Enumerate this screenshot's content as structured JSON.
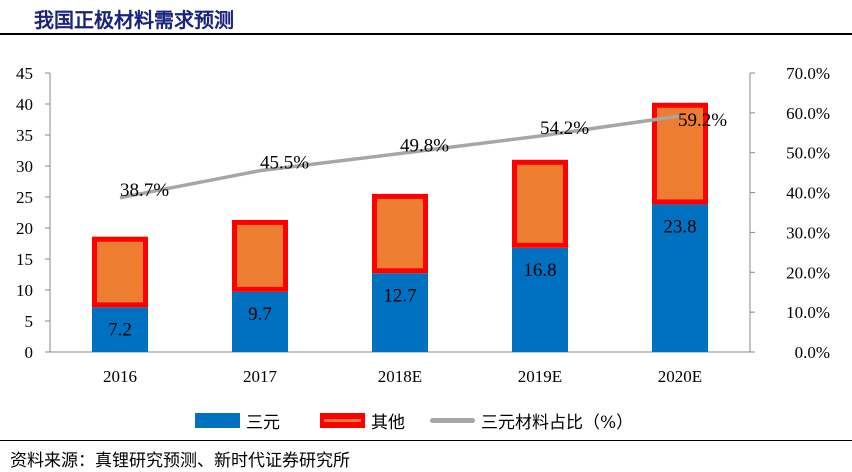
{
  "title": "我国正极材料需求预测",
  "source": "资料来源：真锂研究预测、新时代证券研究所",
  "chart_data": {
    "type": "bar",
    "stacked": true,
    "categories": [
      "2016",
      "2017",
      "2018E",
      "2019E",
      "2020E"
    ],
    "series": [
      {
        "name": "三元",
        "type": "bar",
        "axis": "left",
        "values": [
          7.2,
          9.7,
          12.7,
          16.8,
          23.8
        ],
        "color": "#0070c0",
        "labels": [
          "7.2",
          "9.7",
          "12.7",
          "16.8",
          "23.8"
        ]
      },
      {
        "name": "其他",
        "type": "bar",
        "axis": "left",
        "values": [
          11.4,
          11.6,
          12.8,
          14.2,
          16.4
        ],
        "color": "#ed7d31",
        "border": "#ff0000"
      },
      {
        "name": "三元材料占比（%）",
        "type": "line",
        "axis": "right",
        "values": [
          38.7,
          45.5,
          49.8,
          54.2,
          59.2
        ],
        "color": "#a6a6a6",
        "labels": [
          "38.7%",
          "45.5%",
          "49.8%",
          "54.2%",
          "59.2%"
        ]
      }
    ],
    "ylim": [
      0,
      45
    ],
    "yticks": [
      "0",
      "5",
      "10",
      "15",
      "20",
      "25",
      "30",
      "35",
      "40",
      "45"
    ],
    "y2lim": [
      0,
      70
    ],
    "y2ticks": [
      "0.0%",
      "10.0%",
      "20.0%",
      "30.0%",
      "40.0%",
      "50.0%",
      "60.0%",
      "70.0%"
    ],
    "grid": false,
    "legend": "bottom"
  }
}
